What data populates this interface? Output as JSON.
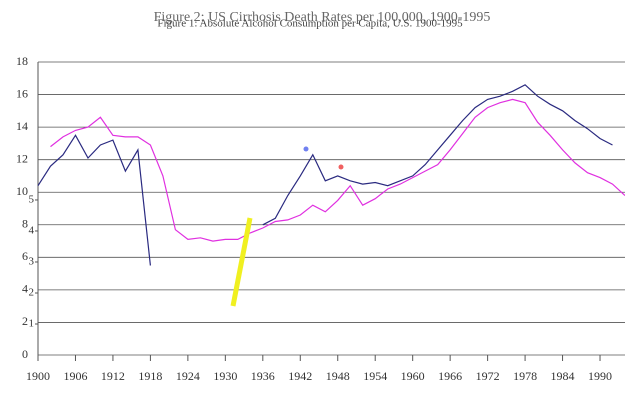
{
  "chart_data": {
    "type": "line",
    "title": "Figure 2: US Cirrhosis Death Rates per 100,000, 1900-1995",
    "subtitle": "Figure 1: Absolute Alcohol Consumption per Capita, U.S. 1900-1995",
    "x": [
      1900,
      1902,
      1904,
      1906,
      1908,
      1910,
      1912,
      1914,
      1916,
      1918,
      1920,
      1922,
      1924,
      1926,
      1928,
      1930,
      1932,
      1934,
      1936,
      1938,
      1940,
      1942,
      1944,
      1946,
      1948,
      1950,
      1952,
      1954,
      1956,
      1958,
      1960,
      1962,
      1964,
      1966,
      1968,
      1970,
      1972,
      1974,
      1976,
      1978,
      1980,
      1982,
      1984,
      1986,
      1988,
      1990,
      1992,
      1994
    ],
    "series": [
      {
        "color": "#e030e0",
        "values": [
          null,
          12.8,
          13.4,
          13.8,
          14.0,
          14.6,
          13.5,
          13.4,
          13.4,
          12.9,
          11.0,
          7.7,
          7.1,
          7.2,
          7.0,
          7.1,
          7.1,
          7.5,
          7.8,
          8.2,
          8.3,
          8.6,
          9.2,
          8.8,
          9.5,
          10.4,
          9.2,
          9.6,
          10.2,
          10.5,
          10.9,
          11.3,
          11.7,
          12.6,
          13.6,
          14.6,
          15.2,
          15.5,
          15.7,
          15.5,
          14.3,
          13.5,
          12.6,
          11.8,
          11.2,
          10.9,
          10.5,
          9.8
        ]
      },
      {
        "color": "#2a2a80",
        "values": [
          10.4,
          11.6,
          12.3,
          13.5,
          12.1,
          12.9,
          13.2,
          11.3,
          12.6,
          5.5,
          null,
          null,
          null,
          null,
          null,
          null,
          null,
          null,
          8.0,
          8.4,
          9.8,
          11.0,
          12.3,
          10.7,
          11.0,
          10.7,
          10.5,
          10.6,
          10.4,
          10.7,
          11.0,
          11.7,
          12.6,
          13.5,
          14.4,
          15.2,
          15.7,
          15.9,
          16.2,
          16.6,
          15.9,
          15.4,
          15.0,
          14.4,
          13.9,
          13.3,
          12.9,
          null
        ]
      }
    ],
    "xlim": [
      1900,
      1994
    ],
    "xticks": [
      1900,
      1906,
      1912,
      1918,
      1924,
      1930,
      1936,
      1942,
      1948,
      1954,
      1960,
      1966,
      1972,
      1978,
      1984,
      1990
    ],
    "ylim": [
      0,
      18
    ],
    "yticks": [
      0,
      2,
      4,
      6,
      8,
      10,
      12,
      14,
      16,
      18
    ],
    "y2lim": [
      0,
      9.45
    ],
    "y2ticks": [
      1,
      2,
      3,
      4,
      5
    ],
    "grid": true
  }
}
